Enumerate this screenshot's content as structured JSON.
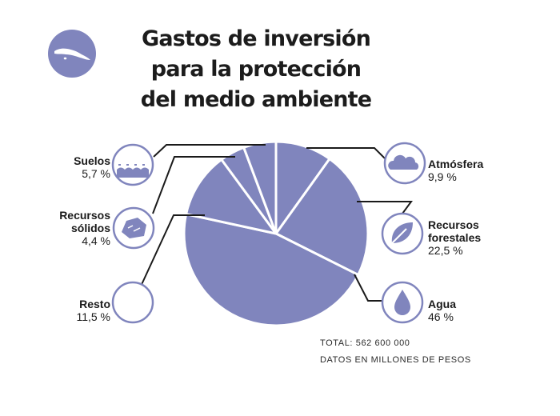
{
  "title_lines": [
    "Gastos de inversión",
    "para la protección",
    "del medio ambiente"
  ],
  "labels": {
    "suelos": {
      "name": "Suelos",
      "pct": "5,7 %"
    },
    "recursos_solidos": {
      "name1": "Recursos",
      "name2": "sólidos",
      "pct": "4,4 %"
    },
    "resto": {
      "name": "Resto",
      "pct": "11,5 %"
    },
    "atmosfera": {
      "name": "Atmósfera",
      "pct": "9,9 %"
    },
    "recursos_forestales": {
      "name1": "Recursos",
      "name2": "forestales",
      "pct": "22,5 %"
    },
    "agua": {
      "name": "Agua",
      "pct": "46 %"
    }
  },
  "footer": {
    "total": "TOTAL: 562 600 000",
    "note": "DATOS EN MILLONES DE PESOS"
  },
  "colors": {
    "slice": "#8085bd",
    "stroke": "#ffffff",
    "line": "#1a1a1a",
    "icon_bg": "#8085bd"
  },
  "icons": [
    "cuba-map-icon",
    "waves-icon",
    "rock-icon",
    "cloud-icon",
    "leaf-icon",
    "water-drop-icon"
  ],
  "chart_data": {
    "type": "pie",
    "categories": [
      "Atmósfera",
      "Recursos forestales",
      "Agua",
      "Resto",
      "Recursos sólidos",
      "Suelos"
    ],
    "values": [
      9.9,
      22.5,
      46,
      11.5,
      4.4,
      5.7
    ],
    "unit": "%",
    "total": 562600000
  }
}
